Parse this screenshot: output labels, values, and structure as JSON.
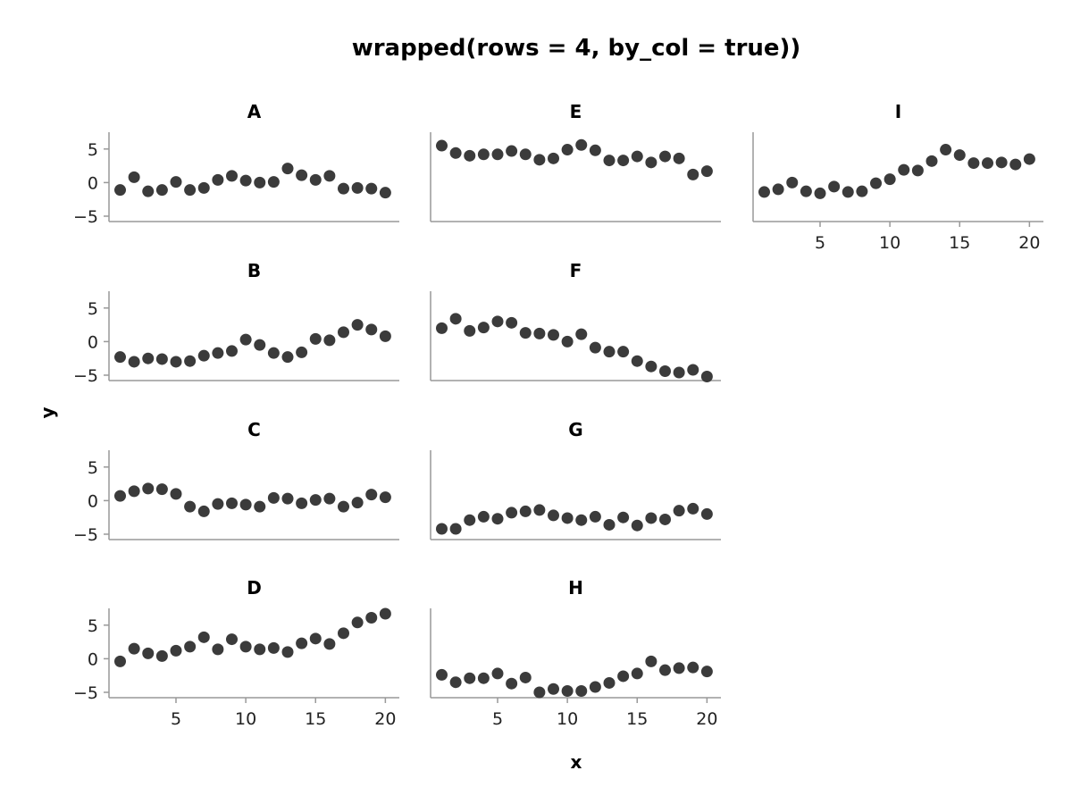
{
  "chart_data": {
    "type": "scatter",
    "title": "wrapped(rows = 4, by_col = true))",
    "xlabel": "x",
    "ylabel": "y",
    "xlim": [
      0.2,
      21
    ],
    "ylim": [
      -5.8,
      7.5
    ],
    "xticks": [
      5,
      10,
      15,
      20
    ],
    "yticks": [
      5,
      0,
      -5
    ],
    "grid": false,
    "marker_color": "#3b3b3b",
    "x": [
      1,
      2,
      3,
      4,
      5,
      6,
      7,
      8,
      9,
      10,
      11,
      12,
      13,
      14,
      15,
      16,
      17,
      18,
      19,
      20
    ],
    "facets": [
      {
        "label": "A",
        "values": [
          -1.1,
          0.8,
          -1.3,
          -1.1,
          0.1,
          -1.1,
          -0.8,
          0.4,
          1.0,
          0.3,
          0.0,
          0.1,
          2.1,
          1.1,
          0.4,
          1.0,
          -0.9,
          -0.8,
          -0.9,
          -1.5
        ]
      },
      {
        "label": "B",
        "values": [
          -2.3,
          -3.0,
          -2.5,
          -2.6,
          -3.0,
          -2.9,
          -2.1,
          -1.7,
          -1.4,
          0.3,
          -0.5,
          -1.7,
          -2.3,
          -1.6,
          0.4,
          0.2,
          1.4,
          2.5,
          1.8,
          0.8
        ]
      },
      {
        "label": "C",
        "values": [
          0.7,
          1.4,
          1.8,
          1.7,
          1.0,
          -0.9,
          -1.6,
          -0.5,
          -0.4,
          -0.6,
          -0.9,
          0.4,
          0.3,
          -0.4,
          0.1,
          0.3,
          -0.9,
          -0.3,
          0.9,
          0.5
        ]
      },
      {
        "label": "D",
        "values": [
          -0.4,
          1.5,
          0.8,
          0.4,
          1.2,
          1.8,
          3.2,
          1.4,
          2.9,
          1.8,
          1.4,
          1.6,
          1.0,
          2.3,
          3.0,
          2.2,
          3.8,
          5.4,
          6.1,
          6.7
        ]
      },
      {
        "label": "E",
        "values": [
          5.5,
          4.4,
          4.0,
          4.2,
          4.2,
          4.7,
          4.2,
          3.4,
          3.6,
          4.9,
          5.6,
          4.8,
          3.3,
          3.3,
          3.9,
          3.0,
          3.9,
          3.6,
          1.2,
          1.7
        ]
      },
      {
        "label": "F",
        "values": [
          2.0,
          3.4,
          1.6,
          2.1,
          3.0,
          2.8,
          1.3,
          1.2,
          1.0,
          0.0,
          1.1,
          -0.9,
          -1.5,
          -1.5,
          -2.9,
          -3.7,
          -4.4,
          -4.6,
          -4.2,
          -5.2
        ]
      },
      {
        "label": "G",
        "values": [
          -4.2,
          -4.2,
          -2.9,
          -2.4,
          -2.7,
          -1.8,
          -1.6,
          -1.4,
          -2.2,
          -2.6,
          -2.9,
          -2.4,
          -3.6,
          -2.5,
          -3.7,
          -2.6,
          -2.8,
          -1.5,
          -1.2,
          -2.0
        ]
      },
      {
        "label": "H",
        "values": [
          -2.4,
          -3.5,
          -2.9,
          -2.9,
          -2.2,
          -3.7,
          -2.8,
          -5.0,
          -4.5,
          -4.8,
          -4.8,
          -4.2,
          -3.6,
          -2.6,
          -2.2,
          -0.4,
          -1.7,
          -1.4,
          -1.3,
          -1.9
        ]
      },
      {
        "label": "I",
        "values": [
          -1.4,
          -1.0,
          0.0,
          -1.3,
          -1.6,
          -0.6,
          -1.4,
          -1.3,
          -0.1,
          0.5,
          1.9,
          1.8,
          3.2,
          4.9,
          4.1,
          2.9,
          2.9,
          3.0,
          2.7,
          3.5
        ]
      }
    ]
  }
}
